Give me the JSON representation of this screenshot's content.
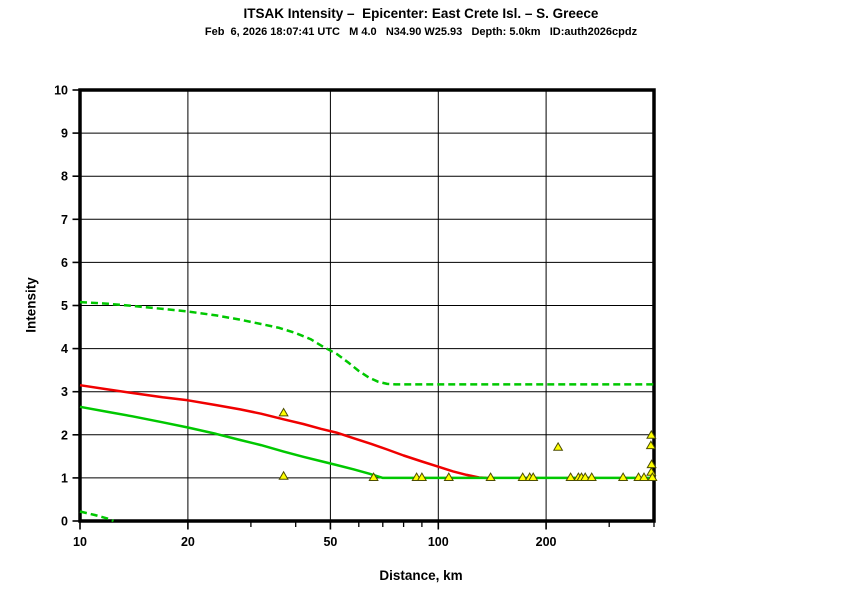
{
  "header": {
    "title": "ITSAK Intensity –  Epicenter: East Crete Isl. – S. Greece",
    "subtitle": "Feb  6, 2026 18:07:41 UTC   M 4.0   N34.90 W25.93   Depth: 5.0km   ID:auth2026cpdz"
  },
  "chart_data": {
    "type": "line",
    "title": "ITSAK Intensity –  Epicenter: East Crete Isl. – S. Greece",
    "subtitle": "Feb  6, 2026 18:07:41 UTC   M 4.0   N34.90 W25.93   Depth: 5.0km   ID:auth2026cpdz",
    "xlabel": "Distance, km",
    "ylabel": "Intensity",
    "x_scale": "log",
    "xlim": [
      10,
      400
    ],
    "ylim": [
      0,
      10
    ],
    "x_ticks_major": [
      10,
      20,
      50,
      100,
      200
    ],
    "x_tick_labels": [
      "10",
      "20",
      "50",
      "100",
      "200"
    ],
    "x_ticks_minor": [
      30,
      40,
      60,
      70,
      80,
      90,
      300,
      400
    ],
    "y_ticks": [
      0,
      1,
      2,
      3,
      4,
      5,
      6,
      7,
      8,
      9,
      10
    ],
    "grid": {
      "horizontal_at": [
        1,
        2,
        3,
        4,
        5,
        6,
        7,
        8,
        9
      ],
      "vertical_at": [
        20,
        50,
        100,
        200
      ]
    },
    "legend": "none",
    "colors": {
      "green": "#00C800",
      "red": "#F00000",
      "marker_fill": "#FFFF00",
      "marker_edge": "#4D4D00",
      "axis": "#000000"
    },
    "series": [
      {
        "name": "green-dashed-upper",
        "style": "dashed",
        "color_key": "green",
        "points": [
          [
            10,
            5.08
          ],
          [
            12,
            5.04
          ],
          [
            14,
            4.99
          ],
          [
            17,
            4.92
          ],
          [
            20,
            4.86
          ],
          [
            24,
            4.77
          ],
          [
            28,
            4.67
          ],
          [
            32,
            4.57
          ],
          [
            36,
            4.48
          ],
          [
            40,
            4.36
          ],
          [
            44,
            4.22
          ],
          [
            48,
            4.03
          ],
          [
            52,
            3.88
          ],
          [
            56,
            3.68
          ],
          [
            60,
            3.48
          ],
          [
            64,
            3.33
          ],
          [
            68,
            3.23
          ],
          [
            72,
            3.18
          ],
          [
            76,
            3.17
          ],
          [
            400,
            3.17
          ]
        ]
      },
      {
        "name": "red-solid-mean",
        "style": "solid",
        "color_key": "red",
        "points": [
          [
            10,
            3.15
          ],
          [
            12,
            3.05
          ],
          [
            14,
            2.97
          ],
          [
            17,
            2.87
          ],
          [
            20,
            2.8
          ],
          [
            24,
            2.69
          ],
          [
            28,
            2.59
          ],
          [
            32,
            2.49
          ],
          [
            37,
            2.36
          ],
          [
            42,
            2.25
          ],
          [
            47,
            2.14
          ],
          [
            52,
            2.05
          ],
          [
            58,
            1.92
          ],
          [
            65,
            1.79
          ],
          [
            72,
            1.66
          ],
          [
            80,
            1.52
          ],
          [
            90,
            1.38
          ],
          [
            100,
            1.26
          ],
          [
            110,
            1.15
          ],
          [
            120,
            1.07
          ],
          [
            130,
            1.01
          ],
          [
            136,
            1.0
          ]
        ]
      },
      {
        "name": "green-solid-lower",
        "style": "solid",
        "color_key": "green",
        "points": [
          [
            10,
            2.65
          ],
          [
            12,
            2.53
          ],
          [
            14,
            2.43
          ],
          [
            17,
            2.29
          ],
          [
            20,
            2.17
          ],
          [
            24,
            2.02
          ],
          [
            28,
            1.88
          ],
          [
            32,
            1.76
          ],
          [
            37,
            1.61
          ],
          [
            42,
            1.49
          ],
          [
            47,
            1.39
          ],
          [
            52,
            1.3
          ],
          [
            58,
            1.2
          ],
          [
            64,
            1.1
          ],
          [
            70,
            1.0
          ],
          [
            400,
            1.0
          ]
        ]
      },
      {
        "name": "green-dashed-bottom",
        "style": "dashed",
        "color_key": "green",
        "points": [
          [
            10,
            0.22
          ],
          [
            11,
            0.14
          ],
          [
            12,
            0.05
          ],
          [
            12.4,
            0.0
          ]
        ]
      }
    ],
    "observations": {
      "marker": "triangle",
      "points": [
        [
          37,
          2.5
        ],
        [
          37,
          1.03
        ],
        [
          66,
          1.0
        ],
        [
          87,
          1.0
        ],
        [
          90,
          1.0
        ],
        [
          107,
          1.0
        ],
        [
          140,
          1.0
        ],
        [
          172,
          1.0
        ],
        [
          180,
          1.0
        ],
        [
          184,
          1.0
        ],
        [
          216,
          1.7
        ],
        [
          234,
          1.0
        ],
        [
          246,
          1.0
        ],
        [
          251,
          1.0
        ],
        [
          257,
          1.0
        ],
        [
          268,
          1.0
        ],
        [
          328,
          1.0
        ],
        [
          362,
          1.0
        ],
        [
          375,
          1.0
        ],
        [
          392,
          1.74
        ],
        [
          393,
          1.98
        ],
        [
          393,
          1.12
        ],
        [
          394,
          1.3
        ],
        [
          396,
          1.0
        ]
      ]
    }
  }
}
